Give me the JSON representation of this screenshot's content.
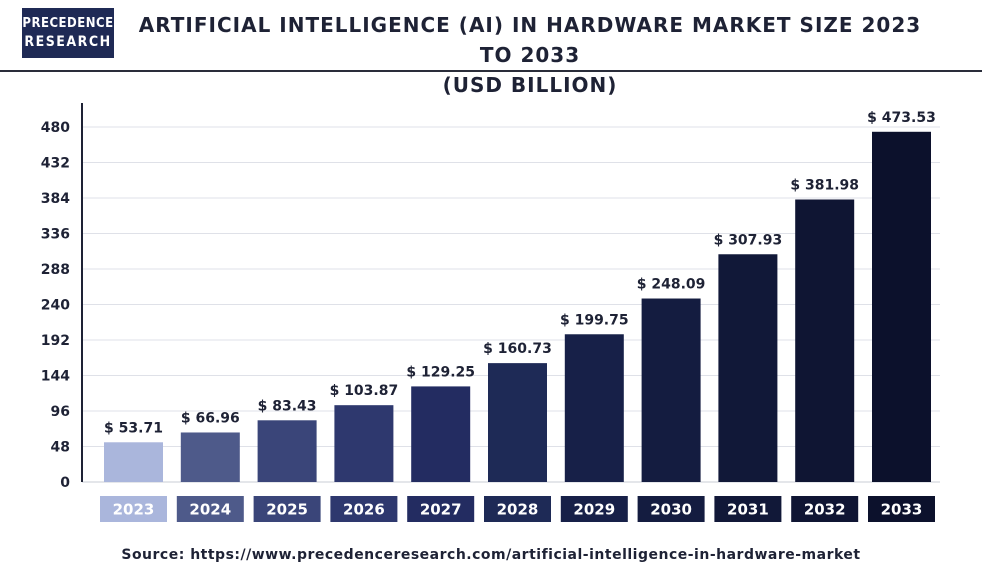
{
  "logo": {
    "line1": "PRECEDENCE",
    "line2": "RESEARCH"
  },
  "title_line1": "ARTIFICIAL INTELLIGENCE (AI) IN HARDWARE MARKET SIZE 2023 TO 2033",
  "title_line2": "(USD BILLION)",
  "source": "Source: https://www.precedenceresearch.com/artificial-intelligence-in-hardware-market",
  "chart_data": {
    "type": "bar",
    "title": "ARTIFICIAL INTELLIGENCE (AI) IN HARDWARE MARKET SIZE 2023 TO 2033 (USD BILLION)",
    "categories": [
      "2023",
      "2024",
      "2025",
      "2026",
      "2027",
      "2028",
      "2029",
      "2030",
      "2031",
      "2032",
      "2033"
    ],
    "values": [
      53.71,
      66.96,
      83.43,
      103.87,
      129.25,
      160.73,
      199.75,
      248.09,
      307.93,
      381.98,
      473.53
    ],
    "data_labels": [
      "$ 53.71",
      "$ 66.96",
      "$ 83.43",
      "$ 103.87",
      "$ 129.25",
      "$ 160.73",
      "$ 199.75",
      "$ 248.09",
      "$ 307.93",
      "$ 381.98",
      "$ 473.53"
    ],
    "yticks": [
      0,
      48,
      96,
      144,
      192,
      240,
      288,
      336,
      384,
      432,
      480
    ],
    "ylim": [
      0,
      480
    ],
    "xlabel": "",
    "ylabel": "",
    "grid": true,
    "bar_colors": [
      "#aab6dc",
      "#4e5a8a",
      "#3a4579",
      "#2e386e",
      "#232c61",
      "#1e2a56",
      "#172048",
      "#141c40",
      "#111838",
      "#0f1533",
      "#0c112c"
    ]
  }
}
